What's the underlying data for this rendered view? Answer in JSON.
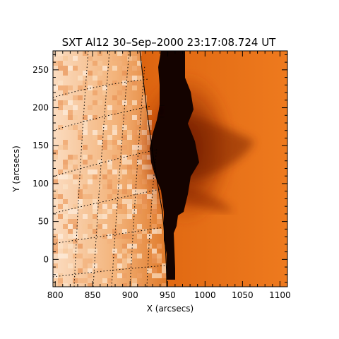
{
  "figure": {
    "title": "SXT Al12 30–Sep–2000 23:17:08.724 UT",
    "xlabel": "X (arcsecs)",
    "ylabel": "Y (arcsecs)"
  },
  "axes": {
    "x": {
      "range": [
        797,
        1110
      ],
      "ticks": [
        800,
        850,
        900,
        950,
        1000,
        1050,
        1100
      ]
    },
    "y": {
      "range": [
        -36,
        275
      ],
      "ticks": [
        0,
        50,
        100,
        150,
        200,
        250
      ]
    }
  },
  "image": {
    "description_colormap": "black-red-orange-white (solar)",
    "limb_x_arcsec": 950,
    "grid": "heliographic, dotted black",
    "colors": {
      "black": "#140300",
      "dark_red": "#5c1500",
      "red": "#a63000",
      "orange": "#e0701a",
      "light_orange": "#f0a468",
      "pale": "#fbdcc0"
    }
  }
}
